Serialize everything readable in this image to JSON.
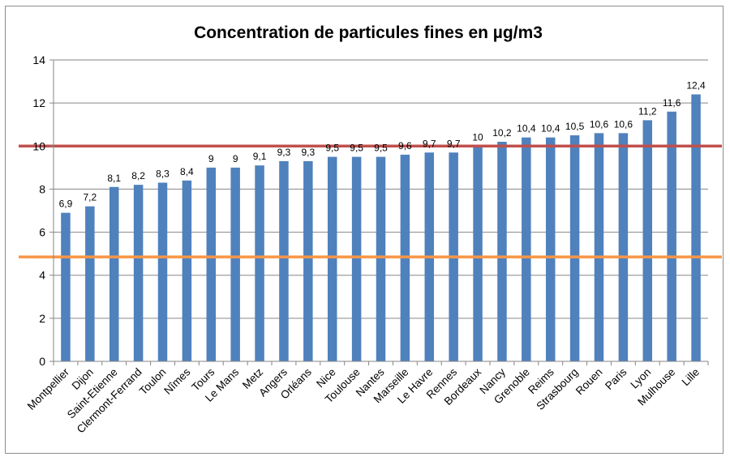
{
  "chart_data": {
    "type": "bar",
    "title": "Concentration de particules fines en µg/m3",
    "xlabel": "",
    "ylabel": "",
    "ylim": [
      0,
      14
    ],
    "yticks": [
      0,
      2,
      4,
      6,
      8,
      10,
      12,
      14
    ],
    "grid": true,
    "legend": "none",
    "categories": [
      "Montpellier",
      "Dijon",
      "Saint-Etienne",
      "Clermont-Ferrand",
      "Toulon",
      "Nîmes",
      "Tours",
      "Le Mans",
      "Metz",
      "Angers",
      "Orléans",
      "Nice",
      "Toulouse",
      "Nantes",
      "Marseille",
      "Le Havre",
      "Rennes",
      "Bordeaux",
      "Nancy",
      "Grenoble",
      "Reims",
      "Strasbourg",
      "Rouen",
      "Paris",
      "Lyon",
      "Mulhouse",
      "Lille"
    ],
    "values": [
      6.9,
      7.2,
      8.1,
      8.2,
      8.3,
      8.4,
      9,
      9,
      9.1,
      9.3,
      9.3,
      9.5,
      9.5,
      9.5,
      9.6,
      9.7,
      9.7,
      10,
      10.2,
      10.4,
      10.4,
      10.5,
      10.6,
      10.6,
      11.2,
      11.6,
      12.4
    ],
    "data_labels": [
      "6,9",
      "7,2",
      "8,1",
      "8,2",
      "8,3",
      "8,4",
      "9",
      "9",
      "9,1",
      "9,3",
      "9,3",
      "9,5",
      "9,5",
      "9,5",
      "9,6",
      "9,7",
      "9,7",
      "10",
      "10,2",
      "10,4",
      "10,4",
      "10,5",
      "10,6",
      "10,6",
      "11,2",
      "11,6",
      "12,4"
    ],
    "reference_lines": [
      {
        "value": 10,
        "color": "#c0504d"
      },
      {
        "value": 4.85,
        "color": "#f79646"
      }
    ],
    "bar_color": "#4f81bd",
    "grid_color": "#868686"
  }
}
